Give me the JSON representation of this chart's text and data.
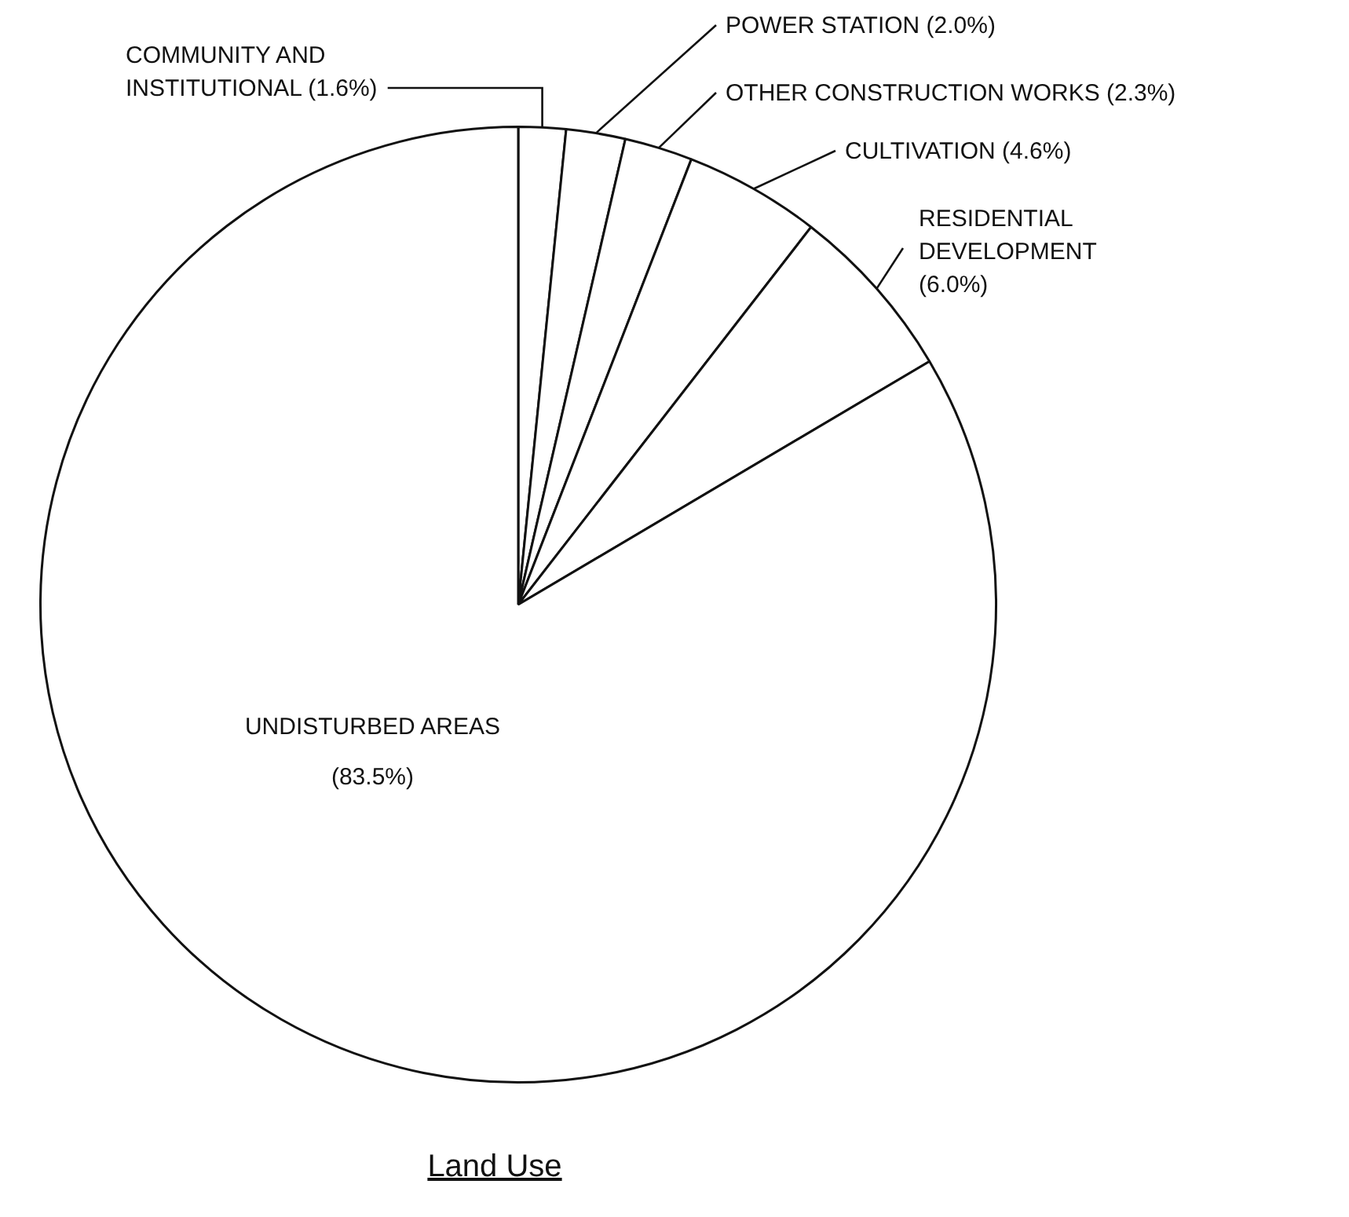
{
  "chart_data": {
    "type": "pie",
    "title": "Land Use",
    "categories": [
      "COMMUNITY AND INSTITUTIONAL",
      "POWER STATION",
      "OTHER CONSTRUCTION WORKS",
      "CULTIVATION",
      "RESIDENTIAL DEVELOPMENT",
      "UNDISTURBED AREAS"
    ],
    "values": [
      1.6,
      2.0,
      2.3,
      4.6,
      6.0,
      83.5
    ],
    "value_labels": [
      "(1.6%)",
      "(2.0%)",
      "(2.3%)",
      "(4.6%)",
      "(6.0%)",
      "(83.5%)"
    ],
    "colors": [
      "#ffffff",
      "#ffffff",
      "#ffffff",
      "#ffffff",
      "#ffffff",
      "#ffffff"
    ],
    "legend": false
  }
}
